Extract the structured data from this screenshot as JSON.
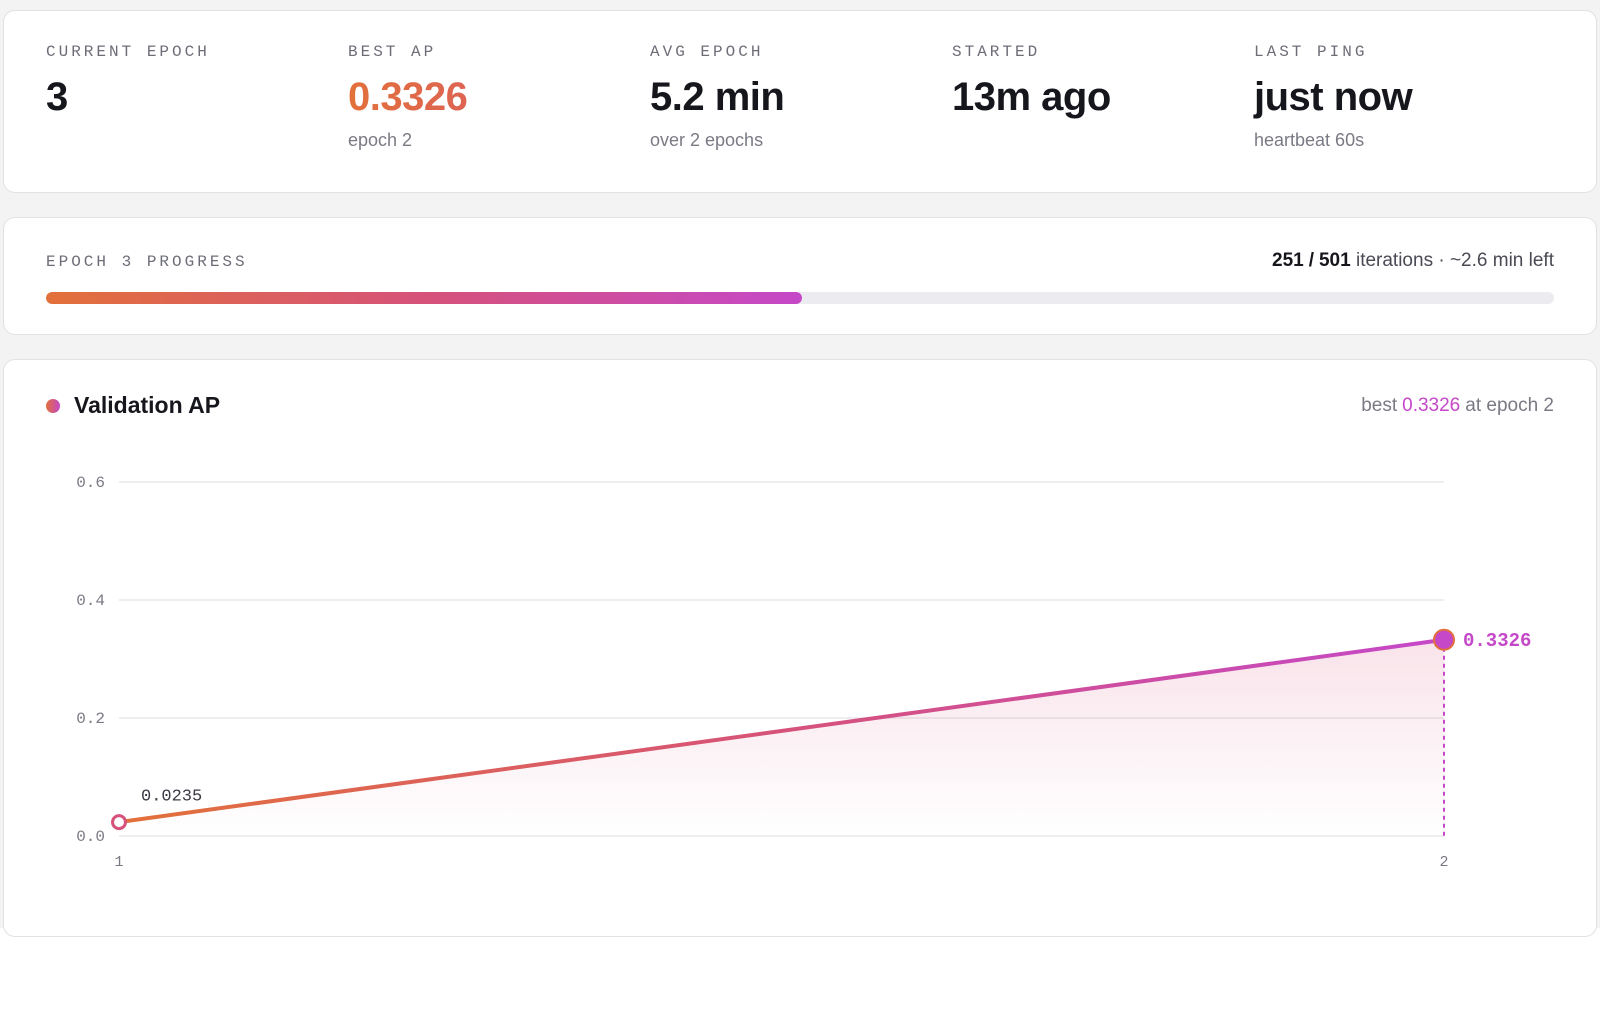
{
  "stats": [
    {
      "label": "CURRENT EPOCH",
      "value": 3
    },
    {
      "label": "BEST AP",
      "value": 0.3326,
      "sub": "epoch 2"
    },
    {
      "label": "AVG EPOCH",
      "value": "5.2 min",
      "sub": "over 2 epochs"
    },
    {
      "label": "STARTED",
      "value": "13m ago"
    },
    {
      "label": "LAST PING",
      "value": "just now",
      "sub": "heartbeat 60s"
    }
  ],
  "progress": {
    "label": "EPOCH 3 PROGRESS",
    "done": 251,
    "separator": "/",
    "total": 501,
    "unit": "iterations",
    "eta": "· ~2.6 min left"
  },
  "chart_data": {
    "type": "line",
    "annotation": {
      "prefix": "best",
      "value": 0.3326,
      "suffix": "at epoch 2"
    },
    "x": [
      1,
      2
    ],
    "xlim": [
      1,
      2
    ],
    "xticks": [
      1,
      2
    ],
    "ylim": [
      0,
      0.6
    ],
    "yticks": [
      {
        "value": 0,
        "label": "0.0"
      },
      0.2,
      0.4,
      0.6
    ],
    "grid": true,
    "series": [
      {
        "name": "Validation AP",
        "color": "#c548c9",
        "values": [
          0.0235,
          0.3326
        ]
      }
    ]
  }
}
